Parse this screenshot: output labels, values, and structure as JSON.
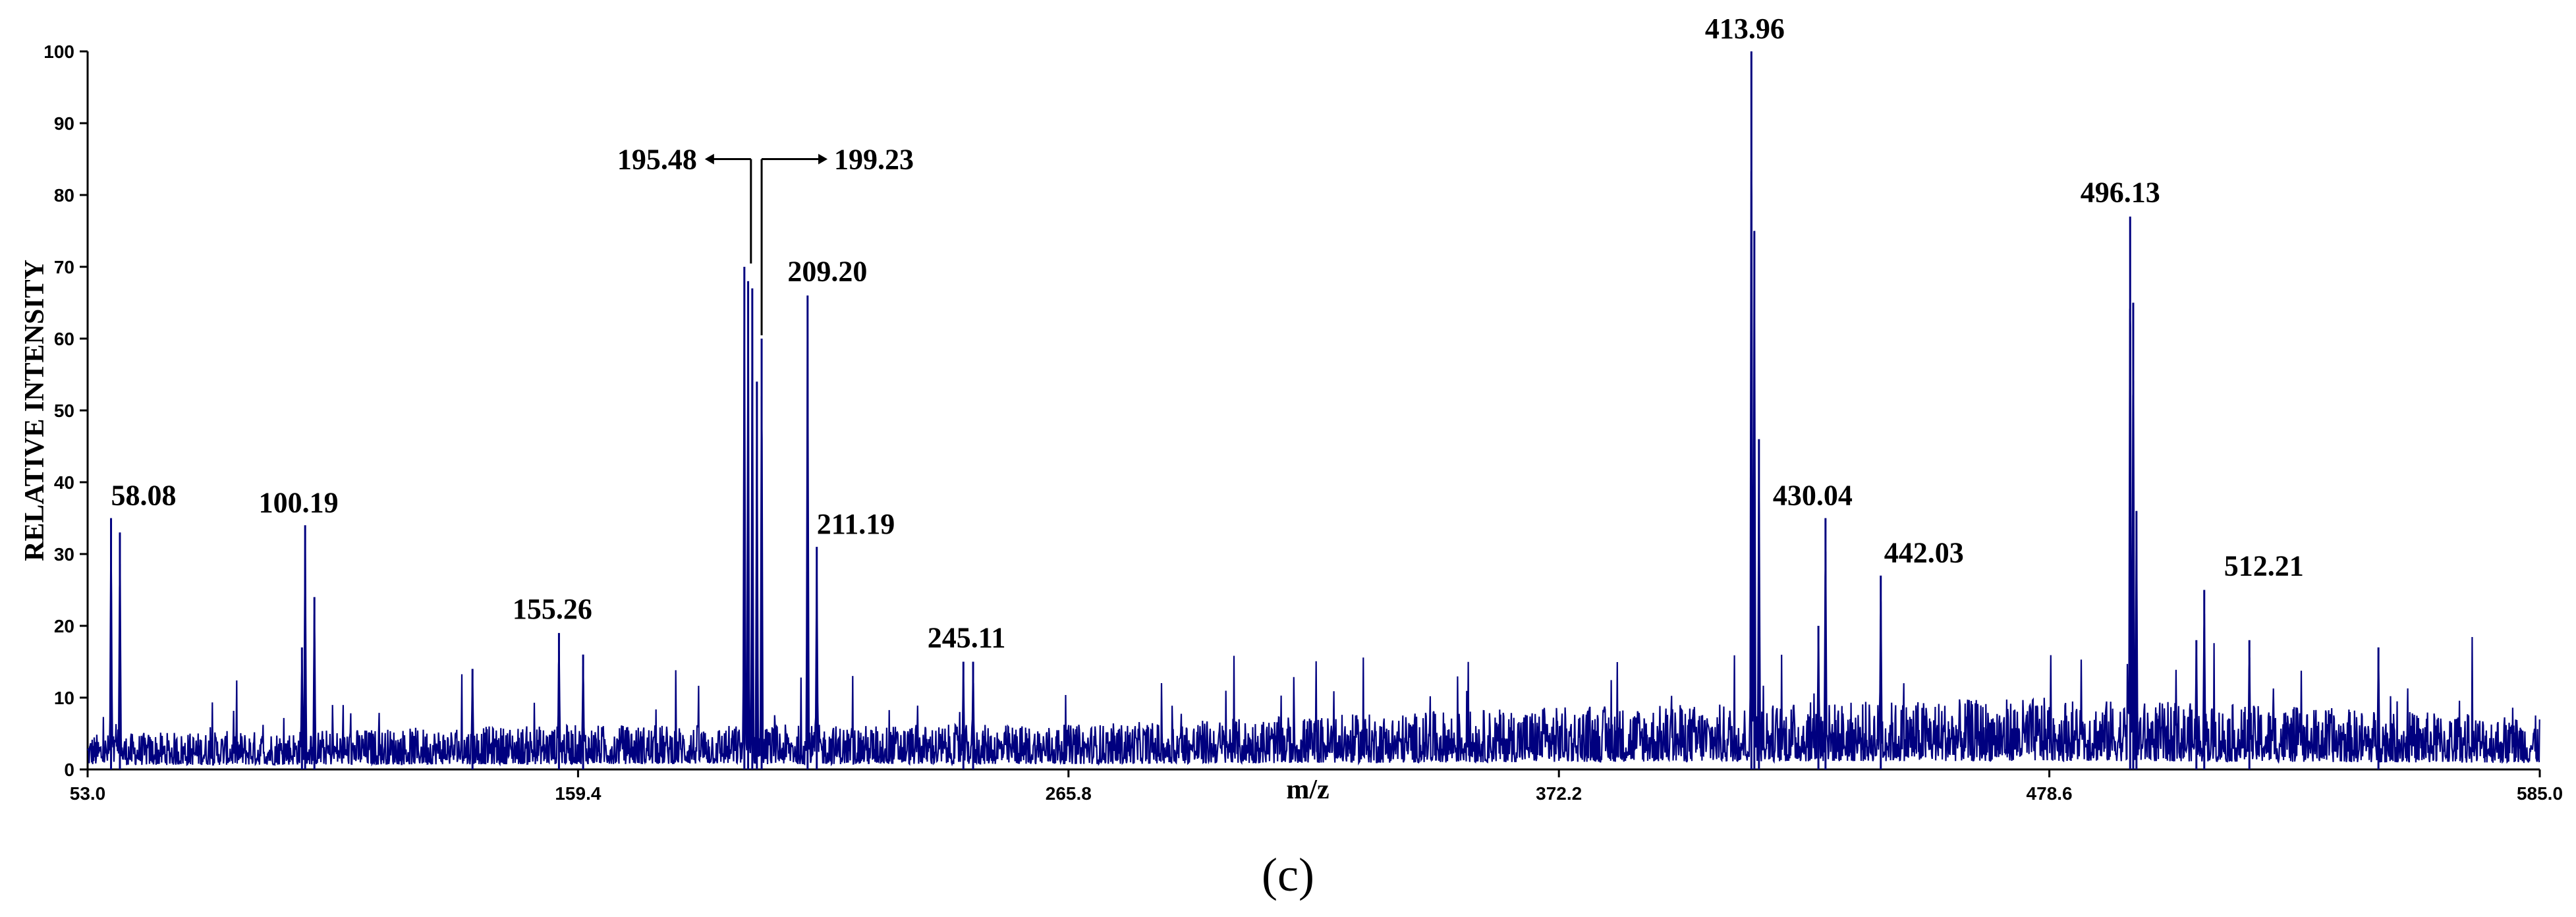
{
  "chart_data": {
    "type": "line",
    "title": "",
    "xlabel": "m/z",
    "ylabel": "RELATIVE INTENSITY",
    "xlim": [
      53.0,
      585.0
    ],
    "ylim": [
      0,
      100
    ],
    "x_ticks": [
      "53.0",
      "159.4",
      "265.8",
      "372.2",
      "478.6",
      "585.0"
    ],
    "y_ticks": [
      "0",
      "10",
      "20",
      "30",
      "40",
      "50",
      "60",
      "70",
      "80",
      "90",
      "100"
    ],
    "grid": false,
    "legend": "none",
    "series_color": "#00007f",
    "peaks": [
      {
        "mz": 58.08,
        "intensity": 35,
        "label": "58.08"
      },
      {
        "mz": 60.0,
        "intensity": 33,
        "label": ""
      },
      {
        "mz": 100.19,
        "intensity": 34,
        "label": "100.19"
      },
      {
        "mz": 102.2,
        "intensity": 24,
        "label": ""
      },
      {
        "mz": 99.5,
        "intensity": 17,
        "label": ""
      },
      {
        "mz": 136.5,
        "intensity": 14,
        "label": ""
      },
      {
        "mz": 155.26,
        "intensity": 19,
        "label": "155.26"
      },
      {
        "mz": 160.5,
        "intensity": 16,
        "label": ""
      },
      {
        "mz": 195.48,
        "intensity": 70,
        "label": "195.48"
      },
      {
        "mz": 196.3,
        "intensity": 68,
        "label": ""
      },
      {
        "mz": 197.2,
        "intensity": 67,
        "label": ""
      },
      {
        "mz": 198.2,
        "intensity": 54,
        "label": ""
      },
      {
        "mz": 199.23,
        "intensity": 60,
        "label": "199.23"
      },
      {
        "mz": 209.2,
        "intensity": 66,
        "label": "209.20"
      },
      {
        "mz": 211.19,
        "intensity": 31,
        "label": "211.19"
      },
      {
        "mz": 243.0,
        "intensity": 15,
        "label": ""
      },
      {
        "mz": 245.11,
        "intensity": 15,
        "label": "245.11"
      },
      {
        "mz": 413.96,
        "intensity": 100,
        "label": "413.96"
      },
      {
        "mz": 414.6,
        "intensity": 75,
        "label": ""
      },
      {
        "mz": 415.6,
        "intensity": 46,
        "label": ""
      },
      {
        "mz": 430.04,
        "intensity": 35,
        "label": "430.04"
      },
      {
        "mz": 428.5,
        "intensity": 20,
        "label": ""
      },
      {
        "mz": 442.03,
        "intensity": 27,
        "label": "442.03"
      },
      {
        "mz": 496.13,
        "intensity": 77,
        "label": "496.13"
      },
      {
        "mz": 496.8,
        "intensity": 65,
        "label": ""
      },
      {
        "mz": 497.5,
        "intensity": 36,
        "label": ""
      },
      {
        "mz": 512.21,
        "intensity": 25,
        "label": "512.21"
      },
      {
        "mz": 510.5,
        "intensity": 18,
        "label": ""
      },
      {
        "mz": 522.0,
        "intensity": 18,
        "label": ""
      },
      {
        "mz": 550.0,
        "intensity": 17,
        "label": ""
      }
    ],
    "noise_level": [
      {
        "mz": 53.0,
        "level": 4
      },
      {
        "mz": 159.4,
        "level": 5
      },
      {
        "mz": 265.8,
        "level": 5
      },
      {
        "mz": 320.0,
        "level": 6
      },
      {
        "mz": 372.2,
        "level": 7
      },
      {
        "mz": 478.6,
        "level": 8
      },
      {
        "mz": 585.0,
        "level": 6
      }
    ]
  },
  "figure": {
    "panel_label": "(c)"
  }
}
